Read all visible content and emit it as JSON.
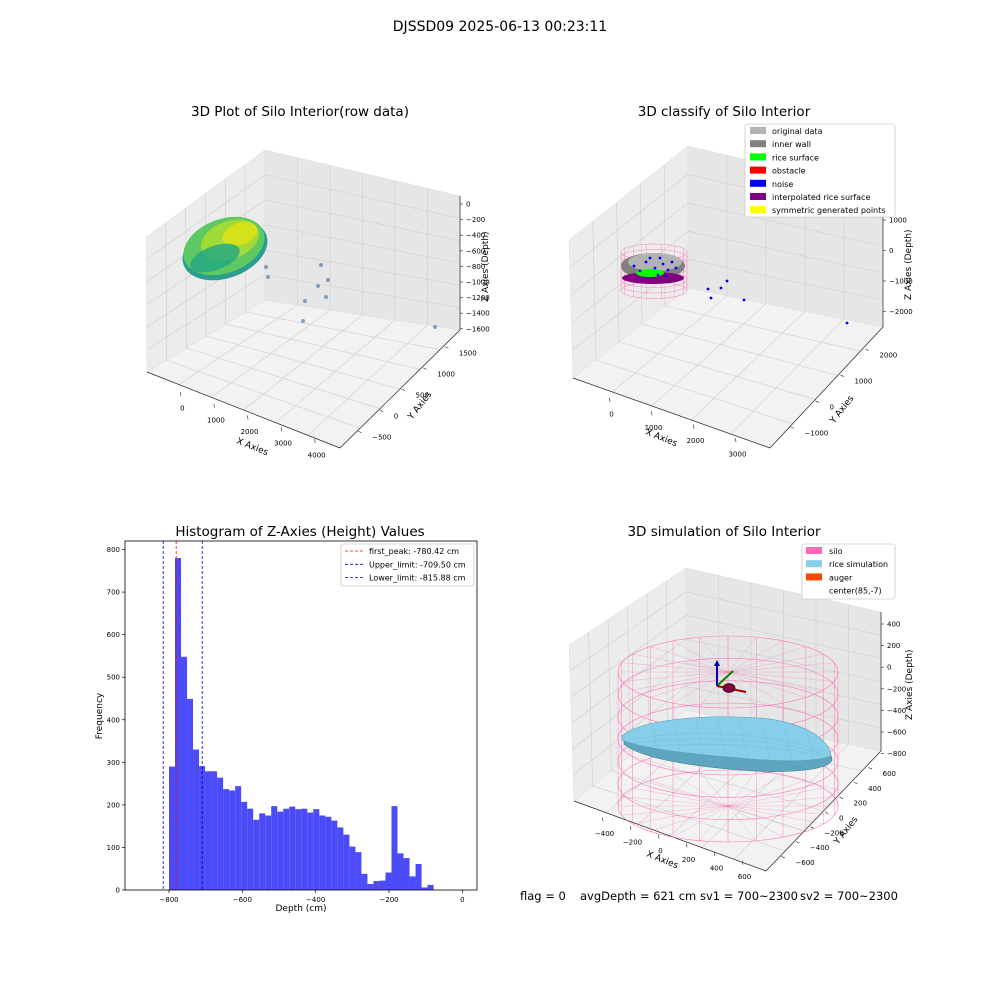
{
  "figure": {
    "suptitle": "DJSSD09 2025-06-13 00:23:11",
    "status": {
      "flag": "flag = 0",
      "avg_depth": "avgDepth = 621 cm",
      "sv1": "sv1 = 700~2300",
      "sv2": "sv2 = 700~2300"
    }
  },
  "colors": {
    "histogram_bar": "#4b4bf7",
    "first_peak_line": "#ff0000",
    "limit_line": "#0000cc",
    "original_data": "#b3b3b3",
    "inner_wall": "#808080",
    "rice_surface": "#00ff00",
    "obstacle": "#ff0000",
    "noise": "#0000ff",
    "interpolated_rice_surface": "#800080",
    "symmetric_generated_points": "#ffff00",
    "silo": "#ff69b4",
    "rice_simulation": "#87ceeb",
    "auger": "#ff4500"
  },
  "chart_data": [
    {
      "type": "scatter3d",
      "title": "3D Plot of Silo Interior(row data)",
      "xlabel": "X Axies",
      "ylabel": "Y Axies",
      "zlabel": "Z Axies (Depth)",
      "xticks": [
        "0",
        "1000",
        "2000",
        "3000",
        "4000"
      ],
      "yticks": [
        "−500",
        "0",
        "500",
        "1000",
        "1500"
      ],
      "zticks": [
        "0",
        "−200",
        "−400",
        "−600",
        "−800",
        "−1000",
        "−1200",
        "−1400",
        "−1600"
      ],
      "colormap": "viridis"
    },
    {
      "type": "scatter3d",
      "title": "3D classify of Silo Interior",
      "xlabel": "X Axies",
      "ylabel": "Y Axies",
      "zlabel": "Z Axies (Depth)",
      "xticks": [
        "0",
        "1000",
        "2000",
        "3000"
      ],
      "yticks": [
        "−1000",
        "0",
        "1000",
        "2000"
      ],
      "zticks": [
        "1000",
        "0",
        "−1000",
        "−2000"
      ],
      "legend_placement": "top-right",
      "legend": [
        {
          "label": "original data",
          "color": "#b3b3b3"
        },
        {
          "label": "inner wall",
          "color": "#808080"
        },
        {
          "label": "rice surface",
          "color": "#00ff00"
        },
        {
          "label": "obstacle",
          "color": "#ff0000"
        },
        {
          "label": "noise",
          "color": "#0000ff"
        },
        {
          "label": "interpolated rice surface",
          "color": "#800080"
        },
        {
          "label": "symmetric generated points",
          "color": "#ffff00"
        }
      ]
    },
    {
      "type": "bar",
      "title": "Histogram of Z-Axies (Height) Values",
      "xlabel": "Depth (cm)",
      "ylabel": "Frequency",
      "xlim": [
        -920,
        40
      ],
      "ylim": [
        0,
        820
      ],
      "xticks": [
        -800,
        -600,
        -400,
        -200,
        0
      ],
      "xtick_labels": [
        "−800",
        "−600",
        "−400",
        "−200",
        "0"
      ],
      "yticks": [
        0,
        100,
        200,
        300,
        400,
        500,
        600,
        700,
        800
      ],
      "bin_start": -800,
      "bin_width": 16.4,
      "values": [
        290,
        780,
        548,
        449,
        330,
        291,
        279,
        279,
        264,
        237,
        234,
        244,
        207,
        191,
        165,
        180,
        175,
        197,
        184,
        191,
        196,
        190,
        191,
        182,
        190,
        175,
        172,
        163,
        147,
        130,
        102,
        89,
        38,
        14,
        21,
        22,
        41,
        197,
        86,
        75,
        32,
        61,
        6,
        12
      ],
      "vlines": [
        {
          "x": -780.42,
          "label": "first_peak: -780.42 cm",
          "color": "#ff0000"
        },
        {
          "x": -709.5,
          "label": "Upper_limit: -709.50 cm",
          "color": "#0000cc"
        },
        {
          "x": -815.88,
          "label": "Lower_limit: -815.88 cm",
          "color": "#0000cc"
        }
      ],
      "legend_placement": "top-right"
    },
    {
      "type": "surface3d",
      "title": "3D simulation of Silo Interior",
      "xlabel": "X Axies",
      "ylabel": "Y Axies",
      "zlabel": "Z Axies (Depth)",
      "xticks": [
        "−400",
        "−200",
        "0",
        "200",
        "400",
        "600"
      ],
      "yticks": [
        "−600",
        "−400",
        "−200",
        "0",
        "200",
        "400",
        "600"
      ],
      "zticks": [
        "400",
        "200",
        "0",
        "−200",
        "−400",
        "−600",
        "−800"
      ],
      "legend_placement": "top-right",
      "legend": [
        {
          "label": "silo",
          "color": "#ff69b4"
        },
        {
          "label": "rice simulation",
          "color": "#87ceeb"
        },
        {
          "label": "auger",
          "color": "#ff4500"
        },
        {
          "label": "center(85,-7)",
          "color": ""
        }
      ]
    }
  ]
}
